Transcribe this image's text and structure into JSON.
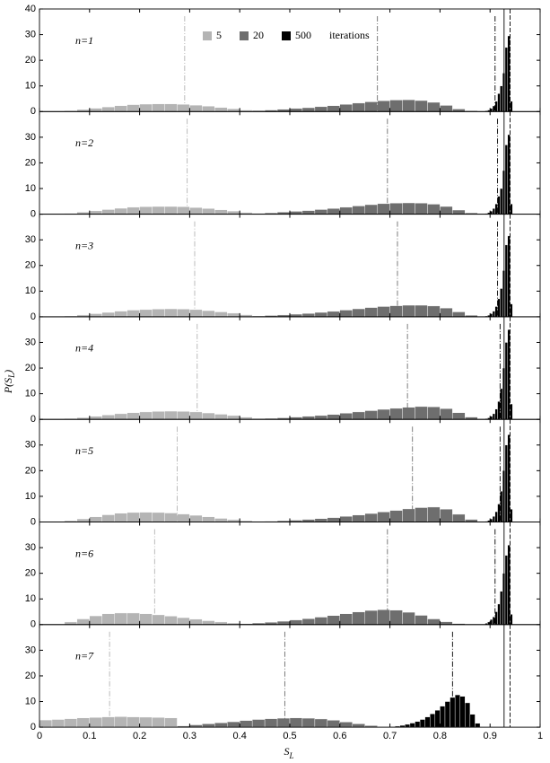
{
  "figure": {
    "x_label": {
      "main": "S",
      "sub": "L"
    },
    "y_label": {
      "main": "P(S",
      "sub": "L",
      "end": ")"
    }
  },
  "chart_data": [
    {
      "type": "histogram",
      "label": "n=1",
      "legend_title": "iterations",
      "ylim": [
        0,
        40
      ],
      "yticks": [
        0,
        10,
        20,
        30,
        40
      ],
      "reference_lines": [
        0.928,
        0.94
      ],
      "series": [
        {
          "name": "5",
          "color": "#b4b4b4",
          "mean": 0.29,
          "bins": [
            0.05,
            0.075,
            0.1,
            0.125,
            0.15,
            0.175,
            0.2,
            0.225,
            0.25,
            0.275,
            0.3,
            0.325,
            0.35,
            0.375,
            0.4,
            0.425,
            0.45
          ],
          "values": [
            0.3,
            0.8,
            1.3,
            1.8,
            2.3,
            2.7,
            2.9,
            3.0,
            3.0,
            2.8,
            2.5,
            2.1,
            1.6,
            1.1,
            0.6,
            0.2
          ]
        },
        {
          "name": "20",
          "color": "#6e6e6e",
          "mean": 0.675,
          "bins": [
            0.4,
            0.425,
            0.45,
            0.475,
            0.5,
            0.525,
            0.55,
            0.575,
            0.6,
            0.625,
            0.65,
            0.675,
            0.7,
            0.725,
            0.75,
            0.775,
            0.8,
            0.825,
            0.85,
            0.875,
            0.9
          ],
          "values": [
            0.2,
            0.4,
            0.6,
            0.9,
            1.2,
            1.5,
            1.9,
            2.3,
            2.8,
            3.3,
            3.8,
            4.2,
            4.5,
            4.6,
            4.3,
            3.6,
            2.4,
            1.0,
            0.3,
            0.1
          ]
        },
        {
          "name": "500",
          "color": "#000000",
          "mean": 0.91,
          "bins": [
            0.89,
            0.895,
            0.9,
            0.905,
            0.91,
            0.915,
            0.92,
            0.925,
            0.93,
            0.935,
            0.94,
            0.945
          ],
          "values": [
            0.3,
            0.6,
            1.2,
            2.2,
            4,
            7,
            10,
            15,
            25,
            29.5,
            4
          ]
        }
      ]
    },
    {
      "type": "histogram",
      "label": "n=2",
      "ylim": [
        0,
        40
      ],
      "yticks": [
        0,
        10,
        20,
        30
      ],
      "reference_lines": [
        0.928,
        0.94
      ],
      "series": [
        {
          "color": "#b4b4b4",
          "mean": 0.295,
          "bins": [
            0.05,
            0.075,
            0.1,
            0.125,
            0.15,
            0.175,
            0.2,
            0.225,
            0.25,
            0.275,
            0.3,
            0.325,
            0.35,
            0.375,
            0.4,
            0.425,
            0.45
          ],
          "values": [
            0.3,
            0.8,
            1.3,
            1.8,
            2.3,
            2.7,
            2.9,
            3.0,
            3.0,
            2.9,
            2.6,
            2.2,
            1.7,
            1.2,
            0.7,
            0.3
          ]
        },
        {
          "color": "#6e6e6e",
          "mean": 0.695,
          "bins": [
            0.4,
            0.425,
            0.45,
            0.475,
            0.5,
            0.525,
            0.55,
            0.575,
            0.6,
            0.625,
            0.65,
            0.675,
            0.7,
            0.725,
            0.75,
            0.775,
            0.8,
            0.825,
            0.85,
            0.875,
            0.9
          ],
          "values": [
            0.2,
            0.3,
            0.5,
            0.8,
            1.1,
            1.4,
            1.8,
            2.2,
            2.7,
            3.2,
            3.7,
            4.1,
            4.3,
            4.4,
            4.3,
            3.9,
            3.0,
            1.6,
            0.5,
            0.1
          ]
        },
        {
          "color": "#000000",
          "mean": 0.915,
          "bins": [
            0.89,
            0.895,
            0.9,
            0.905,
            0.91,
            0.915,
            0.92,
            0.925,
            0.93,
            0.935,
            0.94,
            0.945
          ],
          "values": [
            0.3,
            0.6,
            1.2,
            2.2,
            4,
            7,
            10,
            17,
            27,
            31,
            4
          ]
        }
      ]
    },
    {
      "type": "histogram",
      "label": "n=3",
      "ylim": [
        0,
        40
      ],
      "yticks": [
        0,
        10,
        20,
        30
      ],
      "reference_lines": [
        0.928,
        0.94
      ],
      "series": [
        {
          "color": "#b4b4b4",
          "mean": 0.31,
          "bins": [
            0.05,
            0.075,
            0.1,
            0.125,
            0.15,
            0.175,
            0.2,
            0.225,
            0.25,
            0.275,
            0.3,
            0.325,
            0.35,
            0.375,
            0.4,
            0.425,
            0.45
          ],
          "values": [
            0.3,
            0.7,
            1.2,
            1.7,
            2.2,
            2.6,
            2.8,
            3.0,
            3.1,
            3.0,
            2.8,
            2.4,
            1.9,
            1.4,
            0.8,
            0.3
          ]
        },
        {
          "color": "#6e6e6e",
          "mean": 0.715,
          "bins": [
            0.4,
            0.425,
            0.45,
            0.475,
            0.5,
            0.525,
            0.55,
            0.575,
            0.6,
            0.625,
            0.65,
            0.675,
            0.7,
            0.725,
            0.75,
            0.775,
            0.8,
            0.825,
            0.85,
            0.875,
            0.9
          ],
          "values": [
            0.1,
            0.3,
            0.5,
            0.7,
            1.0,
            1.3,
            1.7,
            2.1,
            2.6,
            3.1,
            3.6,
            4.0,
            4.3,
            4.5,
            4.5,
            4.2,
            3.4,
            1.9,
            0.6,
            0.1
          ]
        },
        {
          "color": "#000000",
          "mean": 0.915,
          "bins": [
            0.89,
            0.895,
            0.9,
            0.905,
            0.91,
            0.915,
            0.92,
            0.925,
            0.93,
            0.935,
            0.94,
            0.945
          ],
          "values": [
            0.3,
            0.6,
            1.2,
            2.2,
            4,
            7,
            11,
            18,
            28,
            31.5,
            5
          ]
        }
      ]
    },
    {
      "type": "histogram",
      "label": "n=4",
      "ylim": [
        0,
        40
      ],
      "yticks": [
        0,
        10,
        20,
        30
      ],
      "reference_lines": [
        0.928,
        0.94
      ],
      "series": [
        {
          "color": "#b4b4b4",
          "mean": 0.315,
          "bins": [
            0.05,
            0.075,
            0.1,
            0.125,
            0.15,
            0.175,
            0.2,
            0.225,
            0.25,
            0.275,
            0.3,
            0.325,
            0.35,
            0.375,
            0.4,
            0.425,
            0.45
          ],
          "values": [
            0.3,
            0.7,
            1.2,
            1.7,
            2.2,
            2.6,
            2.9,
            3.1,
            3.2,
            3.1,
            2.9,
            2.5,
            2.0,
            1.5,
            0.9,
            0.4
          ]
        },
        {
          "color": "#6e6e6e",
          "mean": 0.735,
          "bins": [
            0.4,
            0.425,
            0.45,
            0.475,
            0.5,
            0.525,
            0.55,
            0.575,
            0.6,
            0.625,
            0.65,
            0.675,
            0.7,
            0.725,
            0.75,
            0.775,
            0.8,
            0.825,
            0.85,
            0.875,
            0.9
          ],
          "values": [
            0.1,
            0.2,
            0.4,
            0.6,
            0.9,
            1.2,
            1.5,
            1.9,
            2.4,
            2.9,
            3.4,
            3.9,
            4.3,
            4.7,
            5.0,
            4.9,
            4.2,
            2.6,
            0.9,
            0.2
          ]
        },
        {
          "color": "#000000",
          "mean": 0.92,
          "bins": [
            0.89,
            0.895,
            0.9,
            0.905,
            0.91,
            0.915,
            0.92,
            0.925,
            0.93,
            0.935,
            0.94,
            0.945
          ],
          "values": [
            0.3,
            0.6,
            1.2,
            2.2,
            4,
            7,
            12,
            20,
            30,
            35,
            6
          ]
        }
      ]
    },
    {
      "type": "histogram",
      "label": "n=5",
      "ylim": [
        0,
        40
      ],
      "yticks": [
        0,
        10,
        20,
        30
      ],
      "reference_lines": [
        0.928,
        0.94
      ],
      "series": [
        {
          "color": "#b4b4b4",
          "mean": 0.275,
          "bins": [
            0.05,
            0.075,
            0.1,
            0.125,
            0.15,
            0.175,
            0.2,
            0.225,
            0.25,
            0.275,
            0.3,
            0.325,
            0.35,
            0.375,
            0.4,
            0.425,
            0.45
          ],
          "values": [
            0.5,
            1.2,
            2.0,
            2.8,
            3.4,
            3.7,
            3.8,
            3.7,
            3.5,
            3.1,
            2.6,
            2.0,
            1.4,
            0.9,
            0.5,
            0.2
          ]
        },
        {
          "color": "#6e6e6e",
          "mean": 0.745,
          "bins": [
            0.4,
            0.425,
            0.45,
            0.475,
            0.5,
            0.525,
            0.55,
            0.575,
            0.6,
            0.625,
            0.65,
            0.675,
            0.7,
            0.725,
            0.75,
            0.775,
            0.8,
            0.825,
            0.85,
            0.875,
            0.9
          ],
          "values": [
            0.1,
            0.2,
            0.3,
            0.5,
            0.7,
            1.0,
            1.3,
            1.7,
            2.2,
            2.7,
            3.3,
            3.9,
            4.5,
            5.1,
            5.6,
            5.8,
            5.0,
            3.0,
            1.0,
            0.2
          ]
        },
        {
          "color": "#000000",
          "mean": 0.92,
          "bins": [
            0.89,
            0.895,
            0.9,
            0.905,
            0.91,
            0.915,
            0.92,
            0.925,
            0.93,
            0.935,
            0.94,
            0.945
          ],
          "values": [
            0.3,
            0.6,
            1.2,
            2.2,
            4,
            7,
            12,
            20,
            30,
            34,
            5
          ]
        }
      ]
    },
    {
      "type": "histogram",
      "label": "n=6",
      "ylim": [
        0,
        40
      ],
      "yticks": [
        0,
        10,
        20,
        30
      ],
      "reference_lines": [
        0.928,
        0.94
      ],
      "series": [
        {
          "color": "#b4b4b4",
          "mean": 0.23,
          "bins": [
            0.05,
            0.075,
            0.1,
            0.125,
            0.15,
            0.175,
            0.2,
            0.225,
            0.25,
            0.275,
            0.3,
            0.325,
            0.35,
            0.375,
            0.4,
            0.425,
            0.45
          ],
          "values": [
            1.0,
            2.2,
            3.4,
            4.2,
            4.5,
            4.5,
            4.2,
            3.8,
            3.3,
            2.7,
            2.1,
            1.5,
            1.0,
            0.6,
            0.3,
            0.1
          ]
        },
        {
          "color": "#6e6e6e",
          "mean": 0.695,
          "bins": [
            0.4,
            0.425,
            0.45,
            0.475,
            0.5,
            0.525,
            0.55,
            0.575,
            0.6,
            0.625,
            0.65,
            0.675,
            0.7,
            0.725,
            0.75,
            0.775,
            0.8,
            0.825,
            0.85,
            0.875,
            0.9
          ],
          "values": [
            0.3,
            0.6,
            0.9,
            1.3,
            1.8,
            2.3,
            2.9,
            3.5,
            4.2,
            4.9,
            5.5,
            5.8,
            5.6,
            4.8,
            3.6,
            2.2,
            1.1,
            0.4,
            0.1,
            0.05
          ]
        },
        {
          "color": "#000000",
          "mean": 0.91,
          "bins": [
            0.89,
            0.895,
            0.9,
            0.905,
            0.91,
            0.915,
            0.92,
            0.925,
            0.93,
            0.935,
            0.94,
            0.945
          ],
          "values": [
            0.5,
            1,
            2,
            3,
            5,
            8,
            13,
            20,
            27,
            31,
            4
          ]
        }
      ]
    },
    {
      "type": "histogram",
      "label": "n=7",
      "ylim": [
        0,
        40
      ],
      "yticks": [
        0,
        10,
        20,
        30
      ],
      "xlim": [
        0,
        1
      ],
      "xticks": [
        0,
        0.1,
        0.2,
        0.3,
        0.4,
        0.5,
        0.6,
        0.7,
        0.8,
        0.9,
        1
      ],
      "reference_lines": [
        0.928,
        0.94
      ],
      "series": [
        {
          "color": "#b4b4b4",
          "mean": 0.14,
          "bins": [
            0,
            0.025,
            0.05,
            0.075,
            0.1,
            0.125,
            0.15,
            0.175,
            0.2,
            0.225,
            0.25,
            0.275
          ],
          "values": [
            2.8,
            3.0,
            3.3,
            3.6,
            3.8,
            4.0,
            4.1,
            4.0,
            3.9,
            3.8,
            3.6
          ]
        },
        {
          "color": "#6e6e6e",
          "mean": 0.49,
          "bins": [
            0.275,
            0.3,
            0.325,
            0.35,
            0.375,
            0.4,
            0.425,
            0.45,
            0.475,
            0.5,
            0.525,
            0.55,
            0.575,
            0.6,
            0.625,
            0.65,
            0.675,
            0.7
          ],
          "values": [
            0.5,
            0.9,
            1.3,
            1.7,
            2.1,
            2.6,
            3.0,
            3.3,
            3.5,
            3.6,
            3.5,
            3.2,
            2.7,
            2.0,
            1.3,
            0.6,
            0.2
          ]
        },
        {
          "color": "#000000",
          "mean": 0.825,
          "bins": [
            0.7,
            0.71,
            0.72,
            0.73,
            0.74,
            0.75,
            0.76,
            0.77,
            0.78,
            0.79,
            0.8,
            0.81,
            0.82,
            0.83,
            0.84,
            0.85,
            0.86,
            0.87,
            0.88
          ],
          "values": [
            0.2,
            0.4,
            0.7,
            1.1,
            1.6,
            2.2,
            3,
            4,
            5.2,
            6.6,
            8.2,
            10,
            11.6,
            12.6,
            12,
            9.5,
            5,
            1.5
          ]
        }
      ]
    }
  ]
}
